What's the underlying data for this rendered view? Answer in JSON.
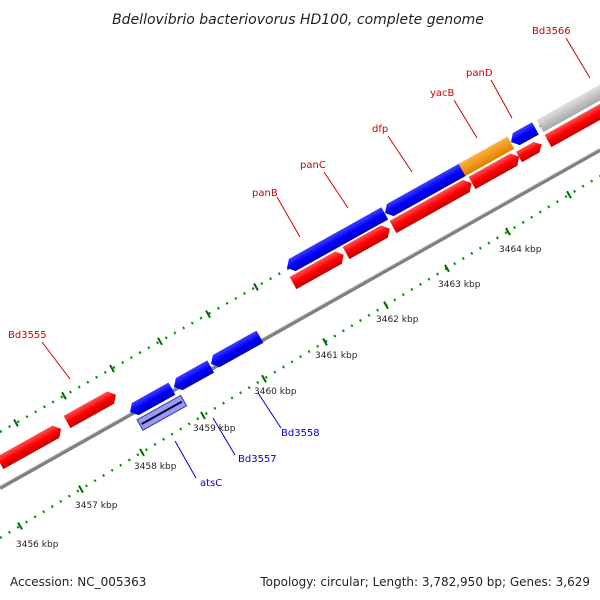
{
  "title": "Bdellovibrio bacteriovorus HD100, complete genome",
  "footer": {
    "accession": "Accession: NC_005363",
    "summary": "Topology: circular; Length: 3,782,950 bp; Genes: 3,629"
  },
  "colors": {
    "forward_cds": "#ff0000",
    "reverse_cds": "#0000ff",
    "other_feature": "#ff9900",
    "gray_feature": "#c0c0c0",
    "backbone": "#808080",
    "tick_major": "#006600",
    "tick_minor": "#009900",
    "label_forward": "#d00000",
    "label_reverse": "#0000cc",
    "highlight": "#9999ee"
  },
  "ticks": [
    {
      "label": "3456 kbp"
    },
    {
      "label": "3457 kbp"
    },
    {
      "label": "3458 kbp"
    },
    {
      "label": "3459 kbp"
    },
    {
      "label": "3460 kbp"
    },
    {
      "label": "3461 kbp"
    },
    {
      "label": "3462 kbp"
    },
    {
      "label": "3463 kbp"
    },
    {
      "label": "3464 kbp"
    }
  ],
  "gene_labels": {
    "forward": [
      {
        "name": "Bd3555"
      },
      {
        "name": "panB"
      },
      {
        "name": "panC"
      },
      {
        "name": "dfp"
      },
      {
        "name": "yacB"
      },
      {
        "name": "panD"
      },
      {
        "name": "Bd3566"
      }
    ],
    "reverse": [
      {
        "name": "atsC"
      },
      {
        "name": "Bd3557"
      },
      {
        "name": "Bd3558"
      }
    ]
  }
}
